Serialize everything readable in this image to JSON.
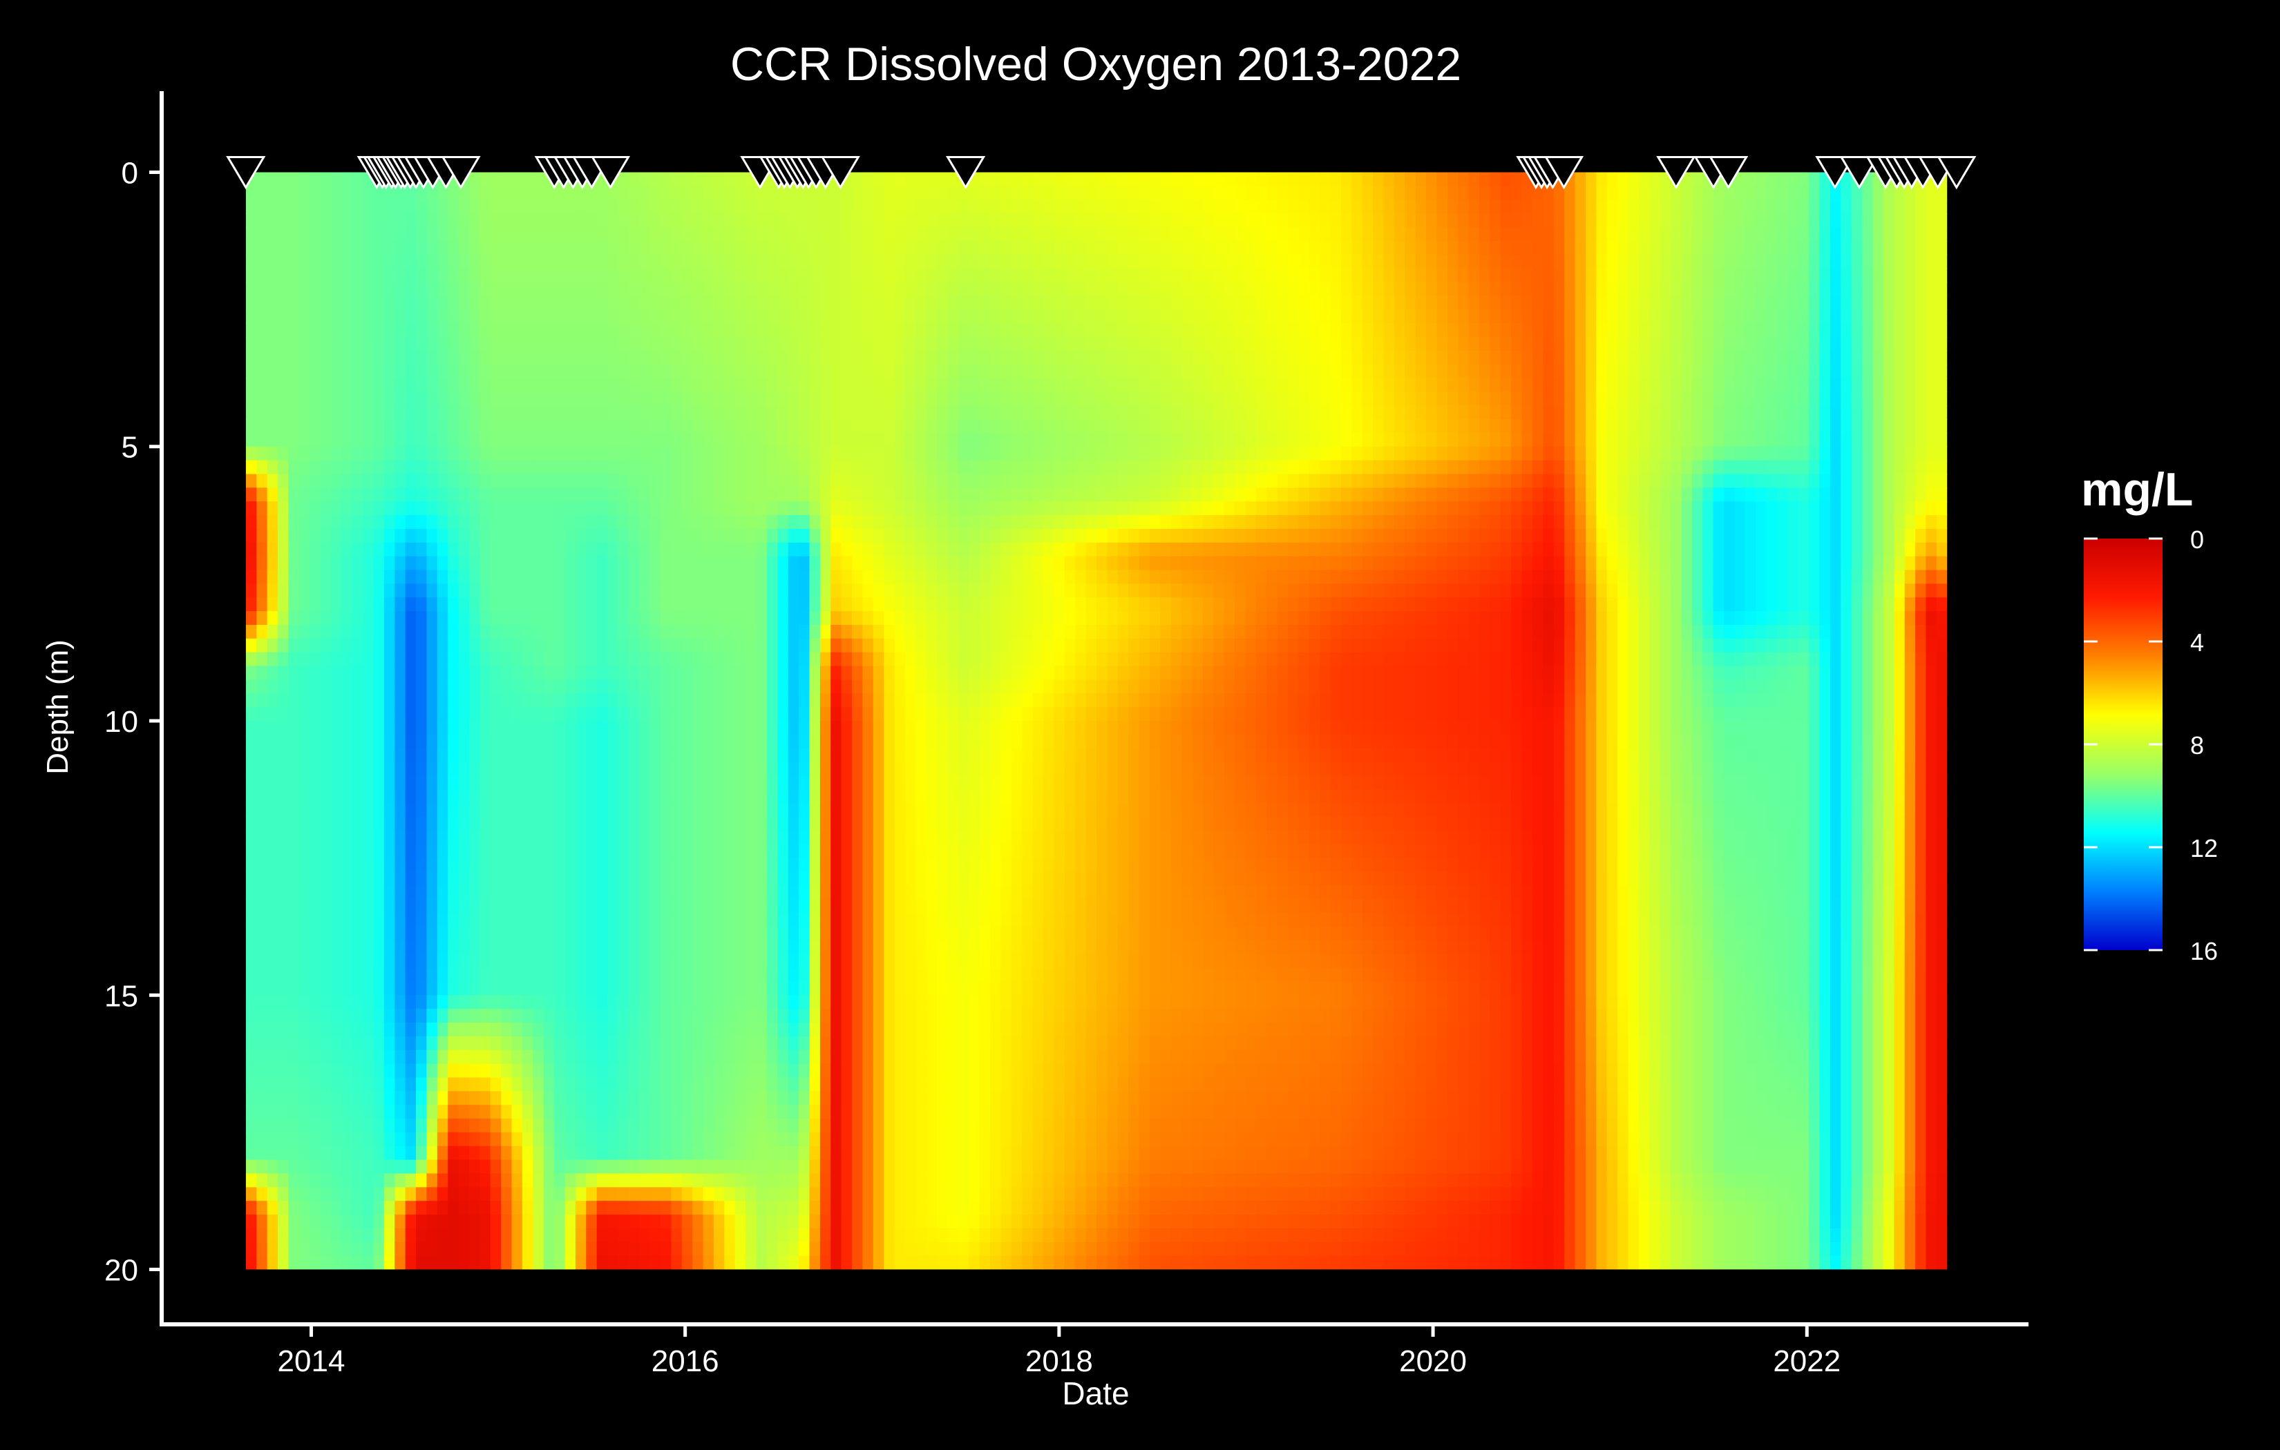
{
  "chart_data": {
    "type": "heatmap",
    "title": "CCR Dissolved Oxygen 2013-2022",
    "xlabel": "Date",
    "ylabel": "Depth (m)",
    "x_range": [
      2013.2,
      2023.2
    ],
    "y_range": [
      -1,
      21
    ],
    "x_ticks": [
      2014,
      2016,
      2018,
      2020,
      2022
    ],
    "x_tick_labels": [
      "2014",
      "2016",
      "2018",
      "2020",
      "2022"
    ],
    "y_ticks": [
      0,
      5,
      10,
      15,
      20
    ],
    "y_tick_labels": [
      "0",
      "5",
      "10",
      "15",
      "20"
    ],
    "data_extent": {
      "x": [
        2013.65,
        2022.75
      ],
      "depth": [
        0,
        20
      ]
    },
    "grid": false,
    "background": "#000000",
    "colorbar": {
      "title": "mg/L",
      "range": [
        0,
        16
      ],
      "ticks": [
        0,
        4,
        8,
        12,
        16
      ],
      "tick_labels": [
        "0",
        "4",
        "8",
        "12",
        "16"
      ],
      "colors": [
        "#cc0000",
        "#ff1a00",
        "#ff8000",
        "#ffff00",
        "#99ff66",
        "#00ffff",
        "#0080ff",
        "#0000cc"
      ]
    },
    "sampling_dates": [
      2013.65,
      2014.35,
      2014.38,
      2014.4,
      2014.43,
      2014.45,
      2014.48,
      2014.5,
      2014.53,
      2014.56,
      2014.6,
      2014.65,
      2014.72,
      2014.8,
      2015.3,
      2015.35,
      2015.4,
      2015.45,
      2015.5,
      2015.6,
      2016.4,
      2016.5,
      2016.53,
      2016.56,
      2016.6,
      2016.63,
      2016.66,
      2016.7,
      2016.75,
      2016.83,
      2017.5,
      2020.55,
      2020.58,
      2020.61,
      2020.64,
      2020.7,
      2021.3,
      2021.5,
      2021.58,
      2022.15,
      2022.28,
      2022.42,
      2022.48,
      2022.52,
      2022.56,
      2022.62,
      2022.7,
      2022.8
    ],
    "do_columns": [
      {
        "x": 2013.65,
        "depth": [
          0,
          5,
          6,
          7,
          8,
          9,
          10,
          15,
          18,
          19,
          20
        ],
        "do": [
          9.5,
          9.5,
          1.5,
          1.0,
          1.8,
          9.5,
          10.5,
          10.5,
          10,
          1.5,
          1.2
        ]
      },
      {
        "x": 2013.9,
        "depth": [
          0,
          5,
          6,
          7,
          8,
          9,
          10,
          15,
          18,
          19,
          20
        ],
        "do": [
          9.5,
          9.5,
          9.8,
          9.8,
          9.8,
          10.5,
          10.5,
          10.5,
          10,
          9.5,
          9.5
        ]
      },
      {
        "x": 2014.35,
        "depth": [
          0,
          5,
          6,
          7,
          8,
          9,
          10,
          15,
          18,
          19,
          20
        ],
        "do": [
          10,
          10,
          10.5,
          11,
          11,
          11,
          11,
          11,
          10.5,
          10.5,
          10
        ]
      },
      {
        "x": 2014.55,
        "depth": [
          0,
          5,
          6,
          7,
          8,
          9,
          10,
          15,
          18,
          19,
          20
        ],
        "do": [
          10,
          10.5,
          11,
          13,
          14.5,
          14.5,
          14.5,
          14,
          12,
          1.5,
          1.0
        ]
      },
      {
        "x": 2014.75,
        "depth": [
          0,
          5,
          6,
          7,
          8,
          9,
          10,
          15,
          18,
          19,
          20
        ],
        "do": [
          9.5,
          10,
          10.5,
          11,
          11.5,
          11.5,
          11.5,
          11,
          1.5,
          1.0,
          1.0
        ]
      },
      {
        "x": 2014.95,
        "depth": [
          0,
          5,
          6,
          7,
          8,
          9,
          10,
          15,
          18,
          19,
          20
        ],
        "do": [
          9,
          9.5,
          10,
          10,
          10,
          10.5,
          10.5,
          10.5,
          2.5,
          1.5,
          1.5
        ]
      },
      {
        "x": 2015.3,
        "depth": [
          0,
          5,
          6,
          7,
          8,
          9,
          10,
          15,
          18,
          19,
          20
        ],
        "do": [
          9,
          9.5,
          10,
          10,
          10,
          10,
          10.5,
          10.5,
          10,
          10,
          10
        ]
      },
      {
        "x": 2015.55,
        "depth": [
          0,
          5,
          6,
          7,
          8,
          9,
          10,
          15,
          18,
          19,
          20
        ],
        "do": [
          9,
          9.5,
          10,
          10.5,
          10.5,
          10.5,
          11,
          11,
          10.5,
          2.0,
          1.5
        ]
      },
      {
        "x": 2015.9,
        "depth": [
          0,
          5,
          6,
          7,
          8,
          9,
          10,
          15,
          18,
          19,
          20
        ],
        "do": [
          8.5,
          9.5,
          9.5,
          9.5,
          9.5,
          10,
          10,
          10,
          10,
          2.5,
          2.0
        ]
      },
      {
        "x": 2016.4,
        "depth": [
          0,
          5,
          6,
          7,
          8,
          9,
          10,
          15,
          18,
          19,
          20
        ],
        "do": [
          8,
          9,
          9,
          9.5,
          9.5,
          9.5,
          9.5,
          9.5,
          9,
          8.5,
          8.5
        ]
      },
      {
        "x": 2016.62,
        "depth": [
          0,
          5,
          6,
          7,
          8,
          9,
          10,
          15,
          18,
          19,
          20
        ],
        "do": [
          8,
          8.5,
          9,
          13,
          13,
          13,
          13,
          12,
          9,
          8,
          7
        ]
      },
      {
        "x": 2016.8,
        "depth": [
          0,
          5,
          6,
          7,
          8,
          9,
          10,
          15,
          18,
          19,
          20
        ],
        "do": [
          8,
          8,
          7.5,
          6.5,
          6,
          2.5,
          1.5,
          1.5,
          1.5,
          1.5,
          1.5
        ]
      },
      {
        "x": 2017.1,
        "depth": [
          0,
          5,
          6,
          7,
          8,
          9,
          10,
          15,
          18,
          19,
          20
        ],
        "do": [
          7.5,
          8,
          8,
          7.5,
          7,
          6.5,
          6.5,
          6.5,
          6.5,
          6.5,
          6.5
        ]
      },
      {
        "x": 2017.5,
        "depth": [
          0,
          5,
          6,
          7,
          8,
          9,
          10,
          15,
          18,
          19,
          20
        ],
        "do": [
          7.5,
          9.5,
          9,
          8.5,
          8,
          8,
          7.5,
          7,
          7,
          7,
          6.5
        ]
      },
      {
        "x": 2018.5,
        "depth": [
          0,
          5,
          6,
          7,
          8,
          9,
          10,
          15,
          18,
          19,
          20
        ],
        "do": [
          7,
          8.5,
          8,
          5,
          6,
          5.5,
          5,
          5,
          4.5,
          4,
          3.5
        ]
      },
      {
        "x": 2019.5,
        "depth": [
          0,
          5,
          6,
          7,
          8,
          9,
          10,
          15,
          18,
          19,
          20
        ],
        "do": [
          6.5,
          7,
          5.5,
          4.5,
          3.5,
          3,
          3,
          4.5,
          4,
          3.5,
          3
        ]
      },
      {
        "x": 2020.4,
        "depth": [
          0,
          5,
          6,
          7,
          8,
          9,
          10,
          15,
          18,
          19,
          20
        ],
        "do": [
          3.5,
          5,
          3.5,
          3,
          2.5,
          2.5,
          2.5,
          3,
          3,
          2.5,
          2.5
        ]
      },
      {
        "x": 2020.65,
        "depth": [
          0,
          5,
          6,
          7,
          8,
          9,
          10,
          15,
          18,
          19,
          20
        ],
        "do": [
          4,
          3.5,
          2.5,
          2,
          1.2,
          1.5,
          2,
          2,
          2,
          2,
          2
        ]
      },
      {
        "x": 2020.9,
        "depth": [
          0,
          5,
          6,
          7,
          8,
          9,
          10,
          15,
          18,
          19,
          20
        ],
        "do": [
          6.5,
          7,
          7,
          6.5,
          6,
          6,
          6,
          6,
          5.5,
          5.5,
          5.5
        ]
      },
      {
        "x": 2021.3,
        "depth": [
          0,
          5,
          6,
          7,
          8,
          9,
          10,
          15,
          18,
          19,
          20
        ],
        "do": [
          8,
          8.5,
          9,
          9,
          9,
          9,
          9,
          8.5,
          8.5,
          8,
          8
        ]
      },
      {
        "x": 2021.55,
        "depth": [
          0,
          5,
          6,
          7,
          8,
          9,
          10,
          15,
          18,
          19,
          20
        ],
        "do": [
          9,
          9.5,
          12,
          12,
          12,
          10.5,
          10,
          9.5,
          9.5,
          9,
          9
        ]
      },
      {
        "x": 2022.0,
        "depth": [
          0,
          5,
          6,
          7,
          8,
          9,
          10,
          15,
          18,
          19,
          20
        ],
        "do": [
          9.5,
          10,
          11,
          11,
          11,
          10,
          10,
          10,
          9.5,
          9.5,
          9.5
        ]
      },
      {
        "x": 2022.15,
        "depth": [
          0,
          5,
          6,
          7,
          8,
          9,
          10,
          15,
          18,
          19,
          20
        ],
        "do": [
          11.5,
          12,
          12,
          12,
          12,
          12,
          12,
          12,
          12,
          12,
          11.5
        ]
      },
      {
        "x": 2022.45,
        "depth": [
          0,
          5,
          6,
          7,
          8,
          9,
          10,
          15,
          18,
          19,
          20
        ],
        "do": [
          8.5,
          8.5,
          8.5,
          8.5,
          8,
          8,
          8,
          7.5,
          7.5,
          7,
          7
        ]
      },
      {
        "x": 2022.65,
        "depth": [
          0,
          5,
          6,
          7,
          8,
          9,
          10,
          15,
          18,
          19,
          20
        ],
        "do": [
          7.5,
          7.5,
          7,
          5,
          1.5,
          2,
          2,
          2,
          2,
          1.8,
          1.8
        ]
      },
      {
        "x": 2022.75,
        "depth": [
          0,
          5,
          6,
          7,
          8,
          9,
          10,
          15,
          18,
          19,
          20
        ],
        "do": [
          7.5,
          7.5,
          7,
          6,
          2,
          1.5,
          1.5,
          1.5,
          1.5,
          1.5,
          1.5
        ]
      }
    ]
  }
}
